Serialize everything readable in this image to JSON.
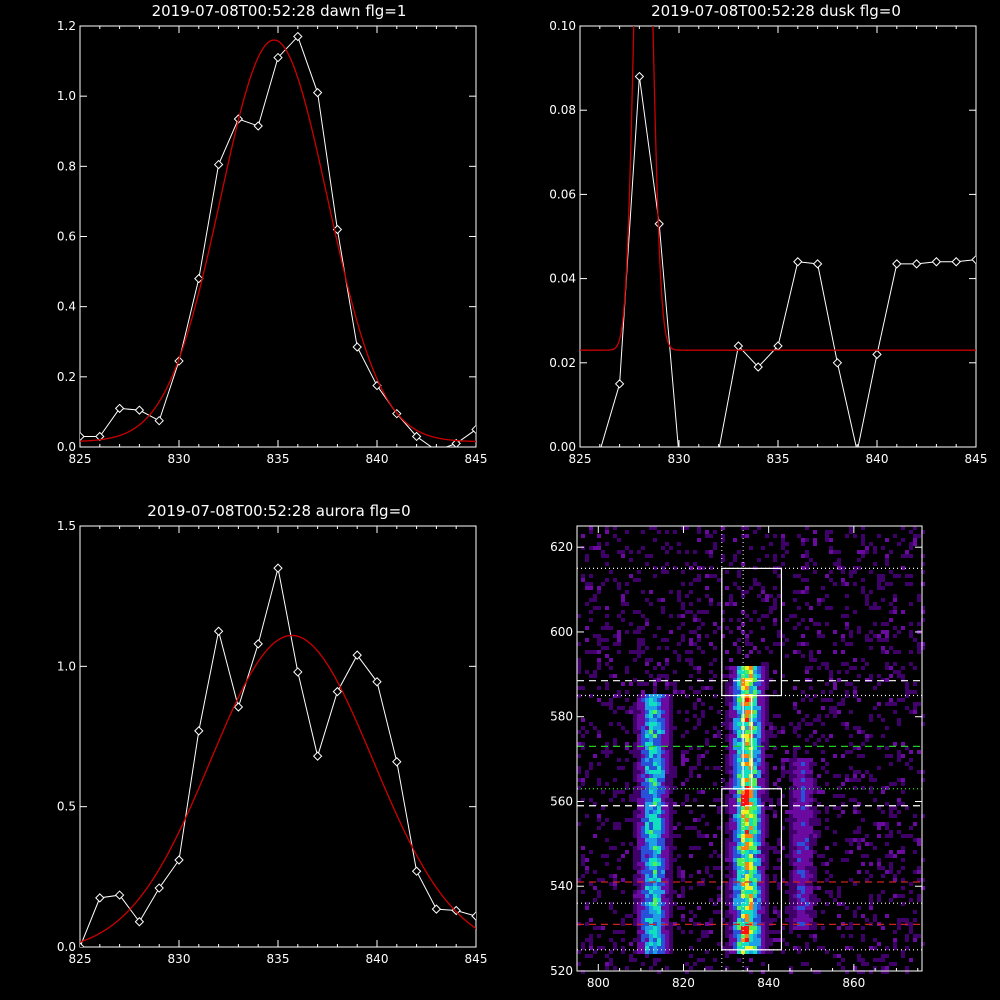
{
  "chart_data": [
    {
      "type": "line",
      "title": "2019-07-08T00:52:28 dawn flg=1",
      "xlim": [
        825,
        845
      ],
      "ylim": [
        0,
        1.2
      ],
      "xticks": [
        "825",
        "830",
        "835",
        "840",
        "845"
      ],
      "yticks": [
        "0.0",
        "0.2",
        "0.4",
        "0.6",
        "0.8",
        "1.0",
        "1.2"
      ],
      "series": [
        {
          "color": "#ffffff",
          "markers": "diamond",
          "x": [
            825,
            826,
            827,
            828,
            829,
            830,
            831,
            832,
            833,
            834,
            835,
            836,
            837,
            838,
            839,
            840,
            841,
            842,
            843,
            844,
            845
          ],
          "y": [
            0.03,
            0.03,
            0.11,
            0.105,
            0.075,
            0.245,
            0.48,
            0.805,
            0.935,
            0.915,
            1.11,
            1.17,
            1.01,
            0.62,
            0.285,
            0.175,
            0.095,
            0.03,
            -0.01,
            0.01,
            0.05
          ]
        },
        {
          "color": "#cc0000",
          "model": "gaussian",
          "amplitude": 1.145,
          "center": 834.8,
          "sigma": 2.7,
          "baseline": 0.015
        }
      ]
    },
    {
      "type": "line",
      "title": "2019-07-08T00:52:28 dusk flg=0",
      "xlim": [
        825,
        845
      ],
      "ylim": [
        0,
        0.1
      ],
      "xticks": [
        "825",
        "830",
        "835",
        "840",
        "845"
      ],
      "yticks": [
        "0.00",
        "0.02",
        "0.04",
        "0.06",
        "0.08",
        "0.10"
      ],
      "series": [
        {
          "color": "#ffffff",
          "markers": "diamond",
          "x": [
            825,
            826,
            827,
            828,
            829,
            830,
            831,
            832,
            833,
            834,
            835,
            836,
            837,
            838,
            839,
            840,
            841,
            842,
            843,
            844,
            845
          ],
          "y": [
            -0.01,
            -0.001,
            0.015,
            0.088,
            0.053,
            -0.002,
            -0.001,
            -0.001,
            0.024,
            0.019,
            0.024,
            0.044,
            0.0435,
            0.02,
            -0.001,
            0.022,
            0.0435,
            0.0435,
            0.044,
            0.044,
            0.0445
          ]
        },
        {
          "color": "#cc0000",
          "model": "gaussian",
          "amplitude": 0.15,
          "center": 828.2,
          "sigma": 0.42,
          "baseline": 0.023
        }
      ]
    },
    {
      "type": "line",
      "title": "2019-07-08T00:52:28 aurora flg=0",
      "xlim": [
        825,
        845
      ],
      "ylim": [
        0,
        1.5
      ],
      "xticks": [
        "825",
        "830",
        "835",
        "840",
        "845"
      ],
      "yticks": [
        "0.0",
        "0.5",
        "1.0",
        "1.5"
      ],
      "series": [
        {
          "color": "#ffffff",
          "markers": "diamond",
          "x": [
            825,
            826,
            827,
            828,
            829,
            830,
            831,
            832,
            833,
            834,
            835,
            836,
            837,
            838,
            839,
            840,
            841,
            842,
            843,
            844,
            845
          ],
          "y": [
            0.0,
            0.175,
            0.185,
            0.09,
            0.21,
            0.31,
            0.77,
            1.125,
            0.855,
            1.08,
            1.35,
            0.98,
            0.68,
            0.91,
            1.04,
            0.945,
            0.66,
            0.27,
            0.135,
            0.13,
            0.11
          ]
        },
        {
          "color": "#cc0000",
          "model": "gaussian",
          "amplitude": 1.13,
          "center": 835.7,
          "sigma": 4.1,
          "baseline": -0.02
        }
      ]
    },
    {
      "type": "heatmap",
      "xlim": [
        795,
        876
      ],
      "ylim": [
        520,
        625
      ],
      "xticks": [
        "800",
        "820",
        "840",
        "860"
      ],
      "yticks": [
        "520",
        "540",
        "560",
        "580",
        "600",
        "620"
      ],
      "colormap": [
        "#40006a",
        "#6a0aa0",
        "#2850d8",
        "#1ea0e6",
        "#10e0c0",
        "#50f050",
        "#f0f020",
        "#ff8010",
        "#ff1010"
      ],
      "emission_bands": [
        {
          "center_x": 813,
          "width": 6,
          "y_range": [
            524,
            585
          ],
          "intensity": 0.55
        },
        {
          "center_x": 835,
          "width": 6,
          "y_range": [
            524,
            592
          ],
          "intensity": 0.85
        },
        {
          "center_x": 848,
          "width": 5,
          "y_range": [
            530,
            570
          ],
          "intensity": 0.25
        }
      ],
      "hot_pixels": [
        [
          834,
          530
        ],
        [
          834,
          561
        ]
      ],
      "boxes": [
        {
          "x": [
            829,
            843
          ],
          "y": [
            525,
            563
          ],
          "color": "#ffffff"
        },
        {
          "x": [
            829,
            843
          ],
          "y": [
            585,
            615
          ],
          "color": "#ffffff"
        },
        {
          "x": [
            834,
            836
          ],
          "y": [
            563,
            585
          ],
          "color": "#ffffff"
        }
      ],
      "horizontal_lines": [
        {
          "y": 615,
          "color": "#ffffff",
          "style": "dotted"
        },
        {
          "y": 588.5,
          "color": "#ffffff",
          "style": "dashed"
        },
        {
          "y": 585,
          "color": "#ffffff",
          "style": "dotted"
        },
        {
          "y": 573,
          "color": "#22cc22",
          "style": "dashed"
        },
        {
          "y": 563,
          "color": "#22ee22",
          "style": "dotted"
        },
        {
          "y": 559,
          "color": "#ffffff",
          "style": "dashed"
        },
        {
          "y": 541,
          "color": "#cc2222",
          "style": "dashed"
        },
        {
          "y": 536,
          "color": "#ffffff",
          "style": "dotted"
        },
        {
          "y": 531,
          "color": "#cc2222",
          "style": "dashed"
        },
        {
          "y": 525,
          "color": "#ffffff",
          "style": "dotted"
        }
      ],
      "vertical_lines": [
        {
          "x": 829,
          "color": "#ffffff",
          "style": "dotted"
        },
        {
          "x": 834,
          "color": "#ffffff",
          "style": "dotted"
        }
      ]
    }
  ]
}
